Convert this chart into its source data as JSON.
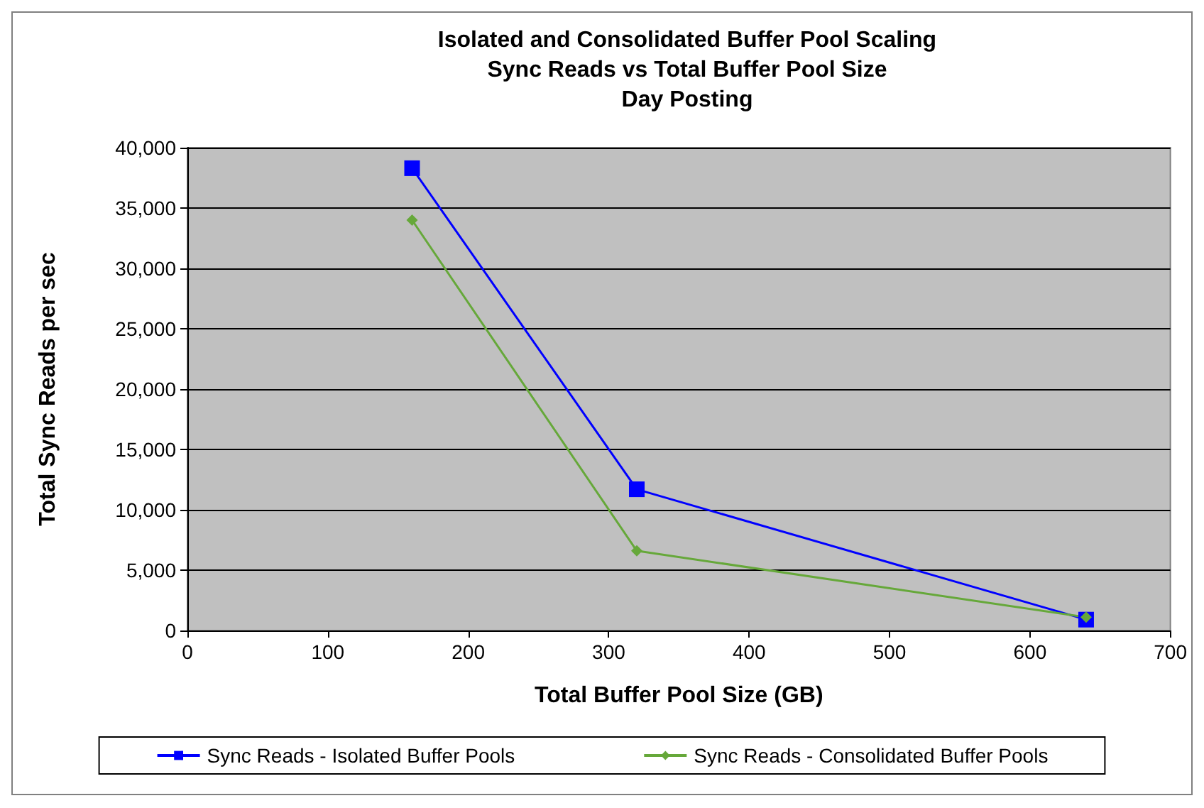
{
  "chart_data": {
    "type": "line",
    "title": "Isolated and Consolidated Buffer Pool Scaling\nSync Reads vs Total Buffer Pool Size\nDay Posting",
    "xlabel": "Total Buffer Pool Size (GB)",
    "ylabel": "Total Sync Reads per sec",
    "x": [
      160,
      320,
      640
    ],
    "series": [
      {
        "name": "Sync Reads - Isolated Buffer Pools",
        "color": "#0000ff",
        "marker": "square",
        "values": [
          38300,
          11700,
          900
        ]
      },
      {
        "name": "Sync Reads - Consolidated Buffer Pools",
        "color": "#66a83a",
        "marker": "diamond",
        "values": [
          34000,
          6600,
          1100
        ]
      }
    ],
    "xlim": [
      0,
      700
    ],
    "xticks": [
      0,
      100,
      200,
      300,
      400,
      500,
      600,
      700
    ],
    "ylim": [
      0,
      40000
    ],
    "yticks": [
      0,
      {
        "value": 5000,
        "label": "5,000"
      },
      {
        "value": 10000,
        "label": "10,000"
      },
      {
        "value": 15000,
        "label": "15,000"
      },
      {
        "value": 20000,
        "label": "20,000"
      },
      {
        "value": 25000,
        "label": "25,000"
      },
      {
        "value": 30000,
        "label": "30,000"
      },
      {
        "value": 35000,
        "label": "35,000"
      },
      {
        "value": 40000,
        "label": "40,000"
      }
    ],
    "grid": "y",
    "legend": "bottom",
    "line_style": "solid"
  }
}
